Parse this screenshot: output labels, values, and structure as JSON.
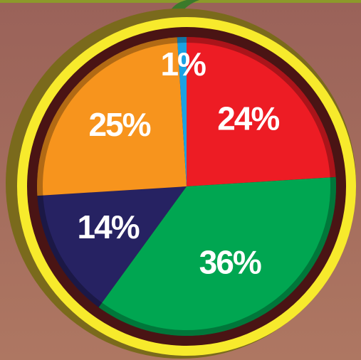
{
  "chart_data": {
    "type": "pie",
    "values": [
      24,
      36,
      14,
      25,
      1
    ],
    "value_labels": [
      "24%",
      "36%",
      "14%",
      "25%",
      "1%"
    ],
    "colors": [
      "#ed1c24",
      "#00a651",
      "#262262",
      "#f7941d",
      "#1ba1e2"
    ],
    "start_angle": 0,
    "direction": "clockwise"
  }
}
